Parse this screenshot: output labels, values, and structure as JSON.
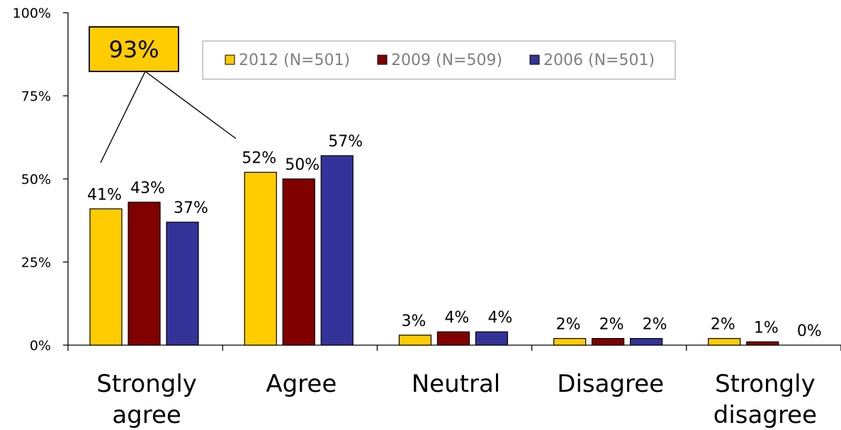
{
  "chart_data": {
    "type": "bar",
    "categories": [
      [
        "Strongly",
        "agree"
      ],
      [
        "Agree"
      ],
      [
        "Neutral"
      ],
      [
        "Disagree"
      ],
      [
        "Strongly",
        "disagree"
      ]
    ],
    "series": [
      {
        "name": "2012 (N=501)",
        "color": "#FFCC00",
        "values": [
          41,
          52,
          3,
          2,
          2
        ],
        "labels": [
          "41%",
          "52%",
          "3%",
          "2%",
          "2%"
        ]
      },
      {
        "name": "2009 (N=509)",
        "color": "#800000",
        "values": [
          43,
          50,
          4,
          2,
          1
        ],
        "labels": [
          "43%",
          "50%",
          "4%",
          "2%",
          "1%"
        ]
      },
      {
        "name": "2006 (N=501)",
        "color": "#333399",
        "values": [
          37,
          57,
          4,
          2,
          0
        ],
        "labels": [
          "37%",
          "57%",
          "4%",
          "2%",
          "0%"
        ]
      }
    ],
    "y_ticks": [
      {
        "value": 0,
        "label": "0%"
      },
      {
        "value": 25,
        "label": "25%"
      },
      {
        "value": 50,
        "label": "50%"
      },
      {
        "value": 75,
        "label": "75%"
      },
      {
        "value": 100,
        "label": "100%"
      }
    ],
    "ylim": [
      0,
      100
    ],
    "grid": false,
    "legend": "top-right",
    "callout": {
      "text": "93%",
      "color": "#FFCC00"
    }
  }
}
